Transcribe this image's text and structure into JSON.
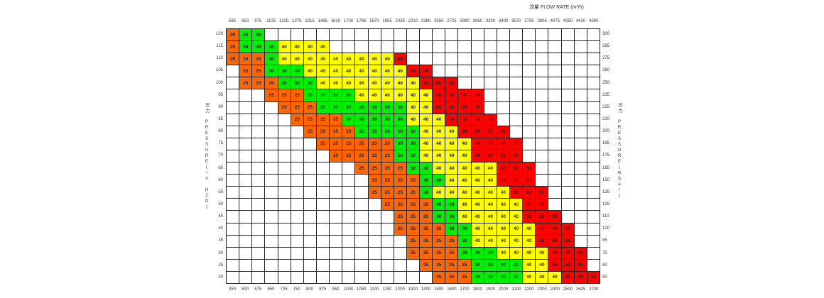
{
  "chart_data": {
    "type": "table",
    "title": "流量 FLOW RATE (m³/h)",
    "left_axis_label": "压力 PRESSURE(in H2O)",
    "right_axis_label": "压力 PRESSURE(mbar)",
    "top_axis_flow_m3h": [
      "595",
      "850",
      "975",
      "1105",
      "1235",
      "1275",
      "1315",
      "1485",
      "1610",
      "1700",
      "1785",
      "1870",
      "1955",
      "2035",
      "2210",
      "2380",
      "2550",
      "2725",
      "2890",
      "3060",
      "3230",
      "3400",
      "3570",
      "3735",
      "3905",
      "4075",
      "4250",
      "4420",
      "4590"
    ],
    "bottom_axis": [
      "350",
      "500",
      "575",
      "650",
      "725",
      "750",
      "800",
      "875",
      "950",
      "1000",
      "1050",
      "1100",
      "1150",
      "1200",
      "1300",
      "1400",
      "1500",
      "1600",
      "1700",
      "1800",
      "1900",
      "2000",
      "2100",
      "2200",
      "2300",
      "2400",
      "2500",
      "2625",
      "2700"
    ],
    "colors": {
      "25": "#ff6600",
      "30": "#00ee00",
      "40": "#ffff00",
      "50": "#ff0000"
    },
    "rows": [
      {
        "in_h2o": "120",
        "mbar": "300",
        "values": [
          25,
          30,
          30,
          null,
          null,
          null,
          null,
          null,
          null,
          null,
          null,
          null,
          null,
          null,
          null,
          null,
          null,
          null,
          null,
          null,
          null,
          null,
          null,
          null,
          null,
          null,
          null,
          null,
          null
        ]
      },
      {
        "in_h2o": "115",
        "mbar": "285",
        "values": [
          25,
          30,
          30,
          30,
          40,
          40,
          40,
          40,
          null,
          null,
          null,
          null,
          null,
          null,
          null,
          null,
          null,
          null,
          null,
          null,
          null,
          null,
          null,
          null,
          null,
          null,
          null,
          null,
          null
        ]
      },
      {
        "in_h2o": "110",
        "mbar": "275",
        "values": [
          25,
          25,
          25,
          30,
          40,
          40,
          40,
          40,
          40,
          40,
          40,
          40,
          40,
          50,
          null,
          null,
          null,
          null,
          null,
          null,
          null,
          null,
          null,
          null,
          null,
          null,
          null,
          null,
          null
        ]
      },
      {
        "in_h2o": "105",
        "mbar": "260",
        "values": [
          null,
          25,
          25,
          30,
          30,
          30,
          40,
          40,
          40,
          40,
          40,
          40,
          40,
          40,
          50,
          50,
          null,
          null,
          null,
          null,
          null,
          null,
          null,
          null,
          null,
          null,
          null,
          null,
          null
        ]
      },
      {
        "in_h2o": "100",
        "mbar": "250",
        "values": [
          null,
          25,
          25,
          25,
          30,
          30,
          30,
          40,
          40,
          40,
          40,
          40,
          40,
          40,
          40,
          50,
          50,
          50,
          null,
          null,
          null,
          null,
          null,
          null,
          null,
          null,
          null,
          null,
          null
        ]
      },
      {
        "in_h2o": "95",
        "mbar": "235",
        "values": [
          null,
          null,
          null,
          25,
          25,
          25,
          30,
          30,
          30,
          30,
          40,
          40,
          40,
          40,
          40,
          40,
          50,
          50,
          50,
          50,
          null,
          null,
          null,
          null,
          null,
          null,
          null,
          null,
          null
        ]
      },
      {
        "in_h2o": "90",
        "mbar": "225",
        "values": [
          null,
          null,
          null,
          null,
          25,
          25,
          25,
          30,
          30,
          30,
          30,
          30,
          30,
          30,
          40,
          40,
          50,
          50,
          50,
          50,
          null,
          null,
          null,
          null,
          null,
          null,
          null,
          null,
          null
        ]
      },
      {
        "in_h2o": "85",
        "mbar": "210",
        "values": [
          null,
          null,
          null,
          null,
          null,
          25,
          25,
          25,
          25,
          30,
          30,
          30,
          30,
          30,
          40,
          40,
          40,
          50,
          50,
          50,
          50,
          null,
          null,
          null,
          null,
          null,
          null,
          null,
          null
        ]
      },
      {
        "in_h2o": "80",
        "mbar": "200",
        "values": [
          null,
          null,
          null,
          null,
          null,
          null,
          25,
          25,
          25,
          25,
          30,
          30,
          30,
          30,
          30,
          40,
          40,
          40,
          50,
          50,
          50,
          50,
          null,
          null,
          null,
          null,
          null,
          null,
          null
        ]
      },
      {
        "in_h2o": "75",
        "mbar": "185",
        "values": [
          null,
          null,
          null,
          null,
          null,
          null,
          null,
          25,
          25,
          25,
          25,
          25,
          25,
          30,
          30,
          40,
          40,
          40,
          40,
          50,
          50,
          50,
          50,
          null,
          null,
          null,
          null,
          null,
          null
        ]
      },
      {
        "in_h2o": "70",
        "mbar": "175",
        "values": [
          null,
          null,
          null,
          null,
          null,
          null,
          null,
          null,
          25,
          25,
          25,
          25,
          25,
          30,
          30,
          40,
          40,
          40,
          40,
          50,
          50,
          50,
          50,
          null,
          null,
          null,
          null,
          null,
          null
        ]
      },
      {
        "in_h2o": "65",
        "mbar": "165",
        "values": [
          null,
          null,
          null,
          null,
          null,
          null,
          null,
          null,
          null,
          null,
          25,
          25,
          25,
          25,
          30,
          30,
          40,
          40,
          40,
          40,
          40,
          50,
          50,
          50,
          null,
          null,
          null,
          null,
          null
        ]
      },
      {
        "in_h2o": "60",
        "mbar": "150",
        "values": [
          null,
          null,
          null,
          null,
          null,
          null,
          null,
          null,
          null,
          null,
          null,
          25,
          25,
          25,
          25,
          30,
          30,
          40,
          40,
          40,
          40,
          50,
          50,
          50,
          null,
          null,
          null,
          null,
          null
        ]
      },
      {
        "in_h2o": "55",
        "mbar": "135",
        "values": [
          null,
          null,
          null,
          null,
          null,
          null,
          null,
          null,
          null,
          null,
          null,
          25,
          25,
          25,
          25,
          30,
          40,
          40,
          40,
          40,
          40,
          40,
          50,
          50,
          50,
          null,
          null,
          null,
          null
        ]
      },
      {
        "in_h2o": "50",
        "mbar": "125",
        "values": [
          null,
          null,
          null,
          null,
          null,
          null,
          null,
          null,
          null,
          null,
          null,
          null,
          25,
          25,
          25,
          25,
          30,
          30,
          40,
          40,
          40,
          40,
          40,
          50,
          50,
          null,
          null,
          null,
          null
        ]
      },
      {
        "in_h2o": "45",
        "mbar": "110",
        "values": [
          null,
          null,
          null,
          null,
          null,
          null,
          null,
          null,
          null,
          null,
          null,
          null,
          null,
          25,
          25,
          25,
          30,
          30,
          40,
          40,
          40,
          40,
          40,
          50,
          50,
          50,
          null,
          null,
          null
        ]
      },
      {
        "in_h2o": "40",
        "mbar": "100",
        "values": [
          null,
          null,
          null,
          null,
          null,
          null,
          null,
          null,
          null,
          null,
          null,
          null,
          null,
          25,
          25,
          25,
          25,
          30,
          30,
          40,
          40,
          40,
          40,
          40,
          50,
          50,
          50,
          null,
          null
        ]
      },
      {
        "in_h2o": "35",
        "mbar": "85",
        "values": [
          null,
          null,
          null,
          null,
          null,
          null,
          null,
          null,
          null,
          null,
          null,
          null,
          null,
          null,
          25,
          25,
          25,
          25,
          30,
          40,
          40,
          40,
          40,
          40,
          50,
          50,
          50,
          null,
          null
        ]
      },
      {
        "in_h2o": "30",
        "mbar": "75",
        "values": [
          null,
          null,
          null,
          null,
          null,
          null,
          null,
          null,
          null,
          null,
          null,
          null,
          null,
          null,
          25,
          25,
          25,
          25,
          30,
          30,
          30,
          40,
          40,
          40,
          40,
          50,
          50,
          50,
          null
        ]
      },
      {
        "in_h2o": "25",
        "mbar": "60",
        "values": [
          null,
          null,
          null,
          null,
          null,
          null,
          null,
          null,
          null,
          null,
          null,
          null,
          null,
          null,
          null,
          25,
          25,
          25,
          25,
          30,
          30,
          30,
          30,
          40,
          40,
          50,
          50,
          50,
          null
        ]
      },
      {
        "in_h2o": "20",
        "mbar": "50",
        "values": [
          null,
          null,
          null,
          null,
          null,
          null,
          null,
          null,
          null,
          null,
          null,
          null,
          null,
          null,
          null,
          null,
          25,
          25,
          25,
          30,
          30,
          30,
          30,
          40,
          40,
          40,
          50,
          50,
          50
        ]
      }
    ]
  }
}
